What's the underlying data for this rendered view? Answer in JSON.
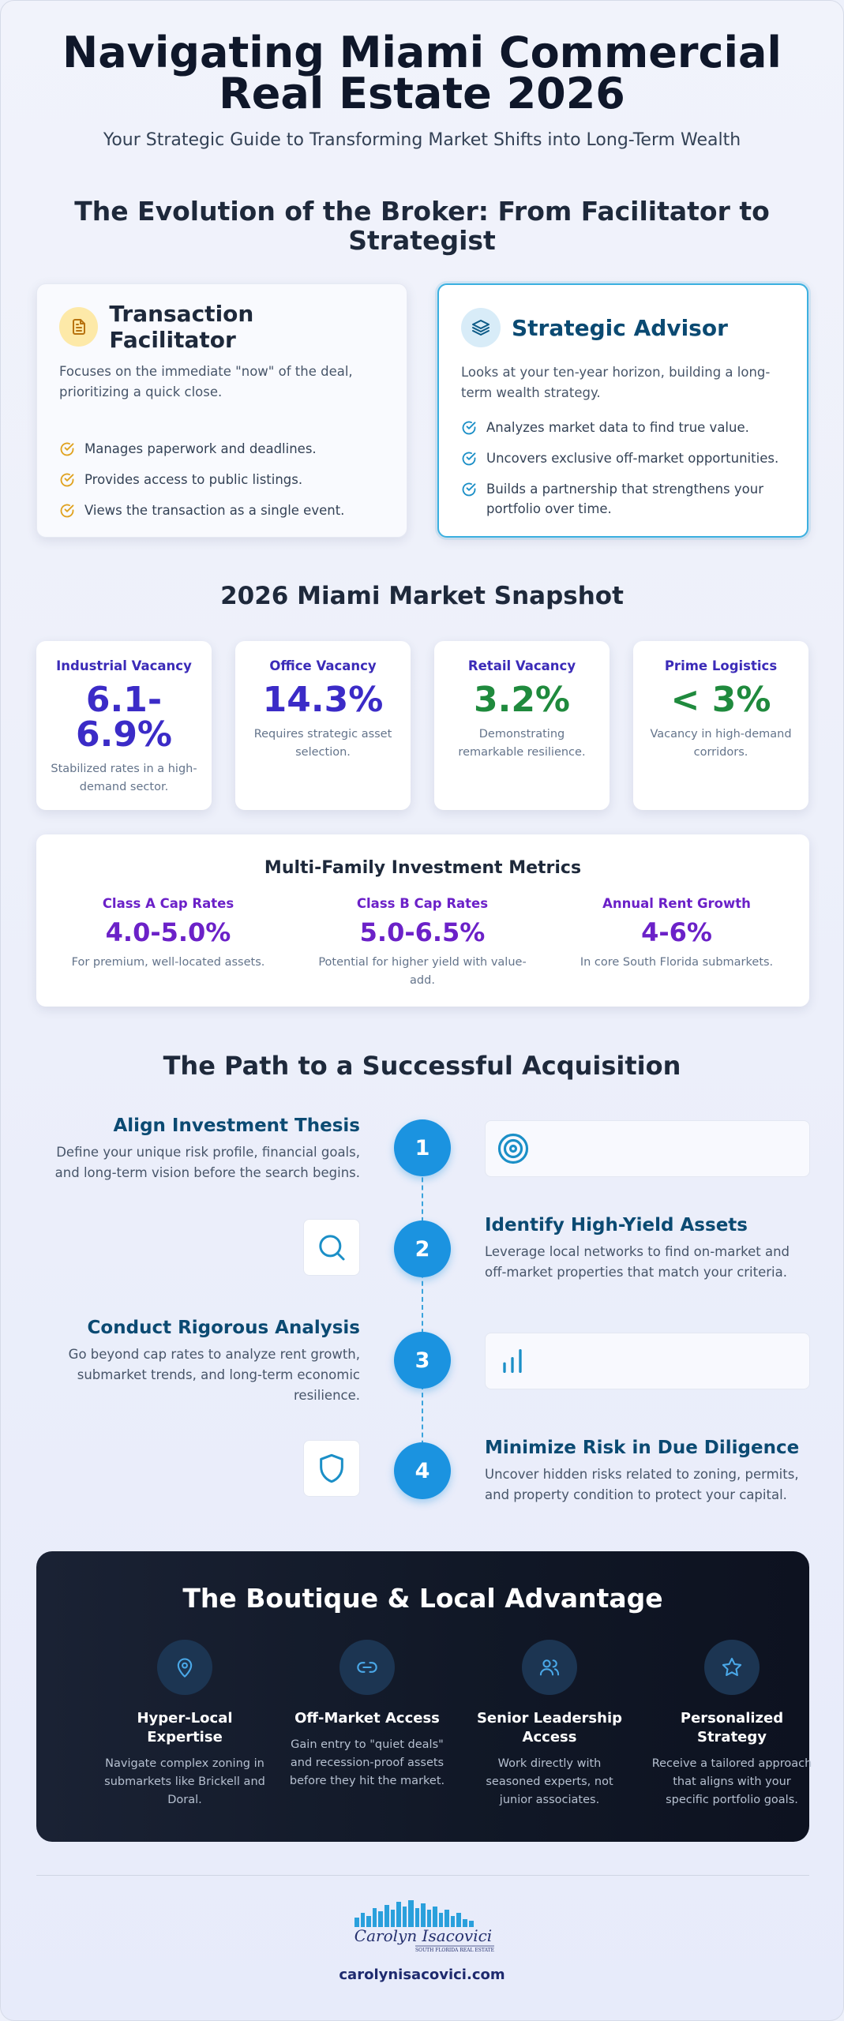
{
  "header": {
    "title_line1": "Navigating Miami Commercial",
    "title_line2": "Real Estate 2026",
    "subtitle": "Your Strategic Guide to Transforming Market Shifts into Long-Term Wealth"
  },
  "evolution": {
    "title_line1": "The Evolution of the Broker: From Facilitator to",
    "title_line2": "Strategist",
    "facilitator": {
      "title": "Transaction Facilitator",
      "icon": "document-icon",
      "description": "Focuses on the immediate \"now\" of the deal, prioritizing a quick close.",
      "items": [
        "Manages paperwork and deadlines.",
        "Provides access to public listings.",
        "Views the transaction as a single event."
      ],
      "accent_color": "#e0a21f"
    },
    "advisor": {
      "title": "Strategic Advisor",
      "icon": "layers-icon",
      "description": "Looks at your ten-year horizon, building a long-term wealth strategy.",
      "items": [
        "Analyzes market data to find true value.",
        "Uncovers exclusive off-market opportunities.",
        "Builds a partnership that strengthens your portfolio over time."
      ],
      "accent_color": "#1b8fc7"
    }
  },
  "snapshot": {
    "title": "2026 Miami Market Snapshot",
    "cards": [
      {
        "label": "Industrial Vacancy",
        "value_line1": "6.1-",
        "value_line2": "6.9%",
        "note": "Stabilized rates in a high-demand sector."
      },
      {
        "label": "Office Vacancy",
        "value": "14.3%",
        "note": "Requires strategic asset selection."
      },
      {
        "label": "Retail Vacancy",
        "value": "3.2%",
        "note": "Demonstrating remarkable resilience."
      },
      {
        "label": "Prime Logistics",
        "value": "< 3%",
        "note": "Vacancy in high-demand corridors."
      }
    ],
    "multifamily": {
      "title": "Multi-Family Investment Metrics",
      "metrics": [
        {
          "label": "Class A Cap Rates",
          "value": "4.0-5.0%",
          "note": "For premium, well-located assets."
        },
        {
          "label": "Class B Cap Rates",
          "value": "5.0-6.5%",
          "note": "Potential for higher yield with value-add."
        },
        {
          "label": "Annual Rent Growth",
          "value": "4-6%",
          "note": "In core South Florida submarkets."
        }
      ]
    }
  },
  "path": {
    "title": "The Path to a Successful Acquisition",
    "steps": [
      {
        "number": "1",
        "title": "Align Investment Thesis",
        "description": "Define your unique risk profile, financial goals, and long-term vision before the search begins.",
        "icon": "target-icon"
      },
      {
        "number": "2",
        "title": "Identify High-Yield Assets",
        "description": "Leverage local networks to find on-market and off-market properties that match your criteria.",
        "icon": "search-icon"
      },
      {
        "number": "3",
        "title": "Conduct Rigorous Analysis",
        "description": "Go beyond cap rates to analyze rent growth, submarket trends, and long-term economic resilience.",
        "icon": "bar-chart-icon"
      },
      {
        "number": "4",
        "title": "Minimize Risk in Due Diligence",
        "description": "Uncover hidden risks related to zoning, permits, and property condition to protect your capital.",
        "icon": "shield-icon"
      }
    ]
  },
  "boutique": {
    "title": "The Boutique & Local Advantage",
    "items": [
      {
        "title": "Hyper-Local Expertise",
        "description": "Navigate complex zoning in submarkets like Brickell and Doral.",
        "icon": "map-pin-icon"
      },
      {
        "title": "Off-Market Access",
        "description": "Gain entry to \"quiet deals\" and recession-proof assets before they hit the market.",
        "icon": "link-icon"
      },
      {
        "title": "Senior Leadership Access",
        "description": "Work directly with seasoned experts, not junior associates.",
        "icon": "users-icon"
      },
      {
        "title": "Personalized Strategy",
        "description": "Receive a tailored approach that aligns with your specific portfolio goals.",
        "icon": "star-icon"
      }
    ]
  },
  "footer": {
    "logo_script": "Carolyn Isacovici",
    "logo_tagline": "SOUTH FLORIDA REAL ESTATE",
    "website": "carolynisacovici.com"
  }
}
